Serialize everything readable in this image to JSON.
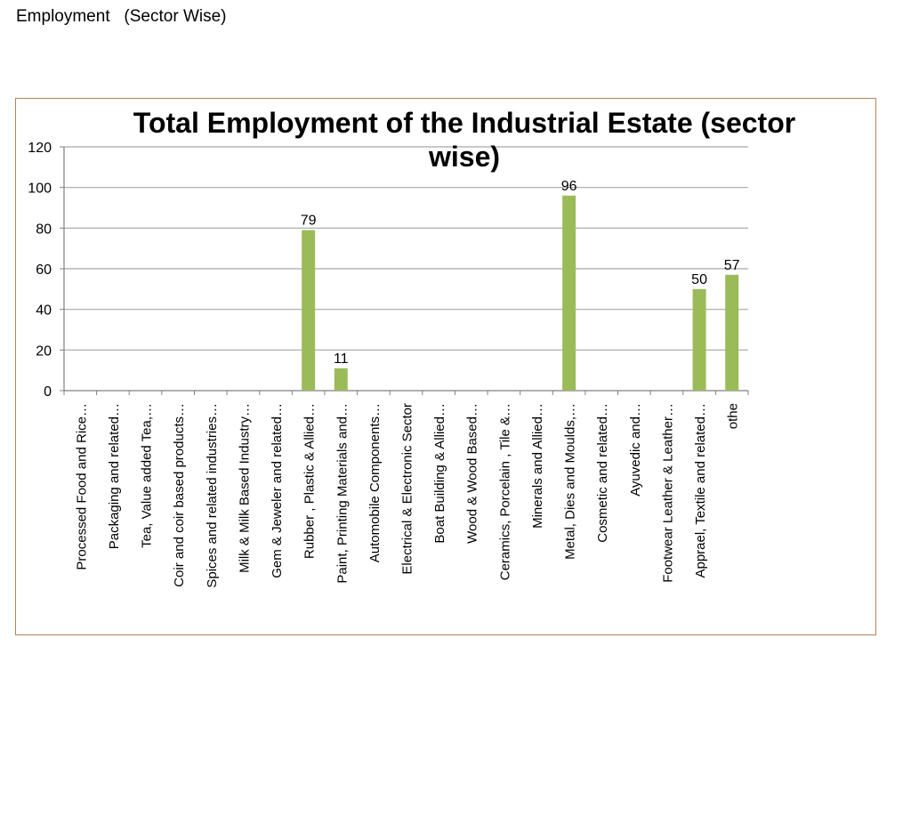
{
  "page": {
    "heading": "Employment   (Sector Wise)"
  },
  "chart_data": {
    "type": "bar",
    "title": "Total Employment of the Industrial Estate (sector wise)",
    "xlabel": "",
    "ylabel": "",
    "ylim": [
      0,
      120
    ],
    "yticks": [
      0,
      20,
      40,
      60,
      80,
      100,
      120
    ],
    "grid": true,
    "legend": "none",
    "bar_color": "#9bbb59",
    "categories": [
      "Processed Food and Rice…",
      "Packaging and related…",
      "Tea, Value added Tea,…",
      "Coir and coir based products…",
      "Spices and related industries…",
      "Milk & Milk Based Industry…",
      "Gem & Jeweler and related…",
      "Rubber , Plastic & Allied…",
      "Paint, Printing Materials and…",
      "Automobile Components…",
      "Electrical & Electronic Sector",
      "Boat Building & Allied…",
      "Wood & Wood Based…",
      "Ceramics, Porcelain , Tile &…",
      "Minerals and Allied…",
      "Metal, Dies and Moulds,…",
      "Cosmetic and related…",
      "Ayuvedic and…",
      "Footwear Leather & Leather…",
      "Apprael, Textile and related…",
      "othe"
    ],
    "values": [
      null,
      null,
      null,
      null,
      null,
      null,
      null,
      79,
      11,
      null,
      null,
      null,
      null,
      null,
      null,
      96,
      null,
      null,
      null,
      50,
      57
    ],
    "data_labels": [
      null,
      null,
      null,
      null,
      null,
      null,
      null,
      "79",
      "11",
      null,
      null,
      null,
      null,
      null,
      null,
      "96",
      null,
      null,
      null,
      "50",
      "57"
    ]
  }
}
